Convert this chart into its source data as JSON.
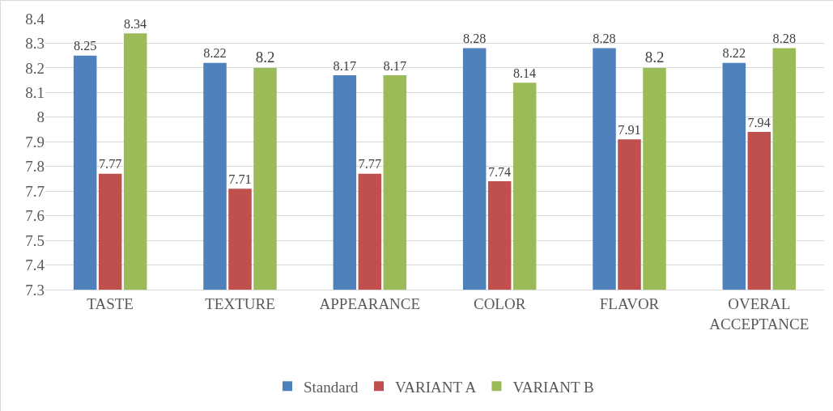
{
  "chart_data": {
    "type": "bar",
    "categories": [
      "TASTE",
      "TEXTURE",
      "APPEARANCE",
      "COLOR",
      "FLAVOR",
      "OVERAL ACCEPTANCE"
    ],
    "series": [
      {
        "name": "Standard",
        "color": "#4f81bd",
        "values": [
          8.25,
          8.22,
          8.17,
          8.28,
          8.28,
          8.22
        ]
      },
      {
        "name": "VARIANT A",
        "color": "#c0504d",
        "values": [
          7.77,
          7.71,
          7.77,
          7.74,
          7.91,
          7.94
        ]
      },
      {
        "name": "VARIANT B",
        "color": "#9bbb59",
        "values": [
          8.34,
          8.2,
          8.17,
          8.14,
          8.2,
          8.28
        ]
      }
    ],
    "ylim": [
      7.3,
      8.4
    ],
    "yticks": [
      7.3,
      7.4,
      7.5,
      7.6,
      7.7,
      7.8,
      7.9,
      8,
      8.1,
      8.2,
      8.3,
      8.4
    ],
    "grid": "y",
    "legend": "bottom",
    "data_labels": true
  }
}
